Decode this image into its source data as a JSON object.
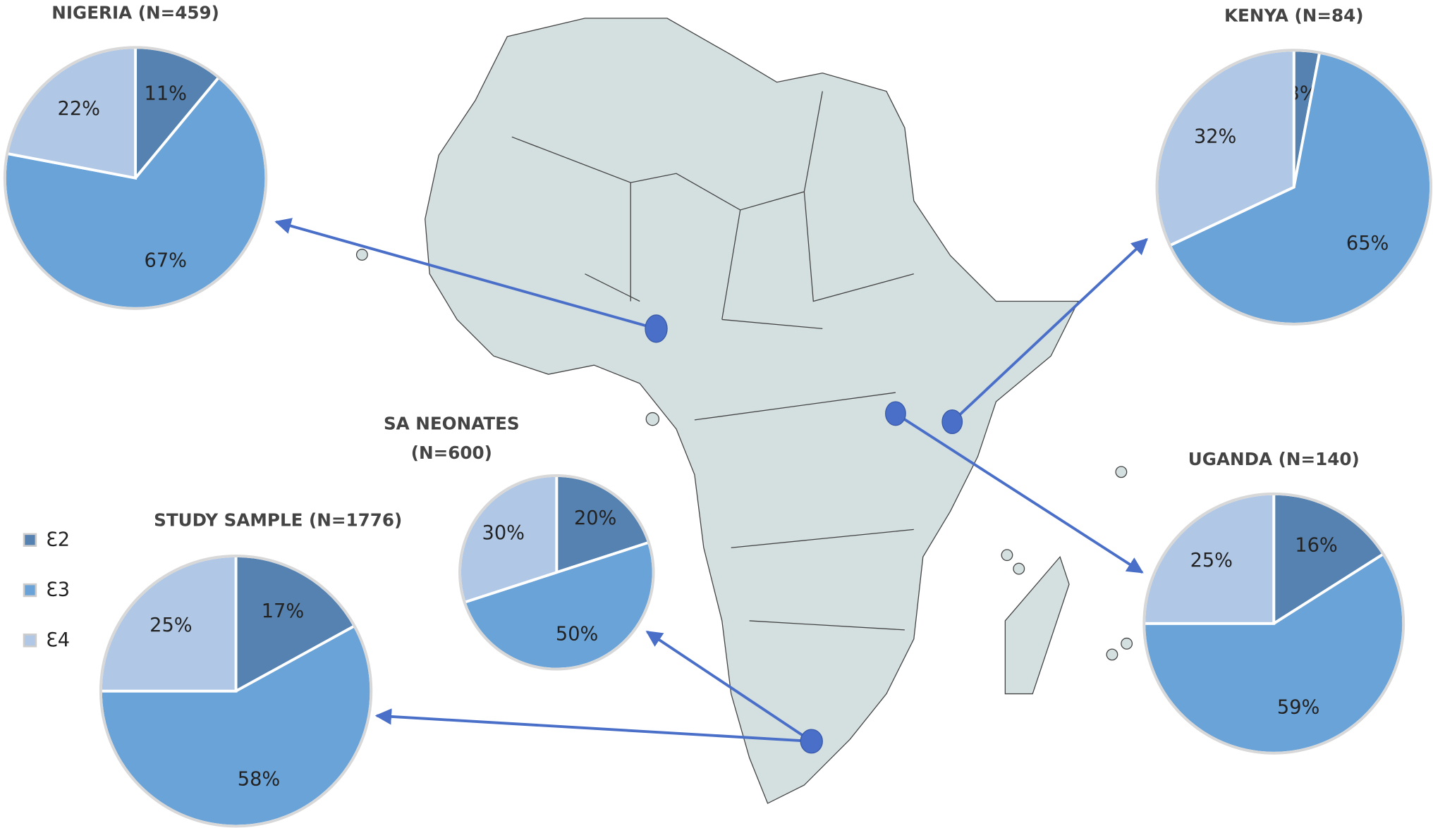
{
  "chart_data": [
    {
      "type": "pie",
      "title": "NIGERIA (N=459)",
      "categories": [
        "Ɛ2",
        "Ɛ3",
        "Ɛ4"
      ],
      "values": [
        11,
        67,
        22
      ],
      "value_labels": [
        "11%",
        "67%",
        "22%"
      ],
      "colors": [
        "#5582b0",
        "#6aa3d8",
        "#b0c8e6"
      ]
    },
    {
      "type": "pie",
      "title": "KENYA (N=84)",
      "categories": [
        "Ɛ2",
        "Ɛ3",
        "Ɛ4"
      ],
      "values": [
        3,
        65,
        32
      ],
      "value_labels": [
        "3%",
        "65%",
        "32%"
      ],
      "colors": [
        "#5582b0",
        "#6aa3d8",
        "#b0c8e6"
      ]
    },
    {
      "type": "pie",
      "title": "UGANDA (N=140)",
      "categories": [
        "Ɛ2",
        "Ɛ3",
        "Ɛ4"
      ],
      "values": [
        16,
        59,
        25
      ],
      "value_labels": [
        "16%",
        "59%",
        "25%"
      ],
      "colors": [
        "#5582b0",
        "#6aa3d8",
        "#b0c8e6"
      ]
    },
    {
      "type": "pie",
      "title": [
        "SA NEONATES",
        "(N=600)"
      ],
      "categories": [
        "Ɛ2",
        "Ɛ3",
        "Ɛ4"
      ],
      "values": [
        20,
        50,
        30
      ],
      "value_labels": [
        "20%",
        "50%",
        "30%"
      ],
      "colors": [
        "#5582b0",
        "#6aa3d8",
        "#b0c8e6"
      ]
    },
    {
      "type": "pie",
      "title": "STUDY SAMPLE (N=1776)",
      "categories": [
        "Ɛ2",
        "Ɛ3",
        "Ɛ4"
      ],
      "values": [
        17,
        58,
        25
      ],
      "value_labels": [
        "17%",
        "58%",
        "25%"
      ],
      "colors": [
        "#5582b0",
        "#6aa3d8",
        "#b0c8e6"
      ]
    }
  ]
}
